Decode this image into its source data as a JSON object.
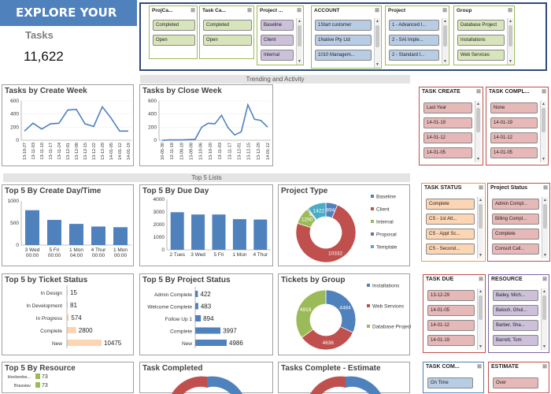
{
  "header": {
    "title": "EXPLORE YOUR DATA",
    "kpi_label": "Tasks",
    "kpi_value": "11,622"
  },
  "top_slicers": [
    {
      "title": "ProjCa...",
      "items": [
        "Completed",
        "Open"
      ],
      "chip_color": "#d8e4bc"
    },
    {
      "title": "Task Ca...",
      "items": [
        "Completed",
        "Open"
      ],
      "chip_color": "#d8e4bc"
    },
    {
      "title": "Project ...",
      "items": [
        "Baseline",
        "Client",
        "Internal"
      ],
      "chip_color": "#ccc0da"
    },
    {
      "title": "ACCOUNT",
      "items": [
        "1Start customer",
        "1Native Pty Ltd",
        "1010 Managem..."
      ],
      "chip_color": "#b8cce4"
    },
    {
      "title": "Project",
      "items": [
        "1 - Advanced I...",
        "2 - SAI Imple...",
        "2 - Standard I..."
      ],
      "chip_color": "#b8cce4"
    },
    {
      "title": "Group",
      "items": [
        "Database Project",
        "Installations",
        "Web Services"
      ],
      "chip_color": "#d8e4bc"
    }
  ],
  "sections": {
    "trend": "Trending and Activity",
    "top5": "Top 5 Lists"
  },
  "charts": {
    "create_week": {
      "title": "Tasks by Create Week",
      "ylim": [
        0,
        600
      ],
      "yticks": [
        "600",
        "400",
        "200",
        "0"
      ],
      "xlabels": [
        "13-10-27",
        "13-11-03",
        "13-11-10",
        "13-11-17",
        "13-11-24",
        "13-12-01",
        "13-12-08",
        "13-12-15",
        "13-12-22",
        "13-12-29",
        "14-01-05",
        "14-01-12",
        "14-01-19"
      ],
      "values": [
        140,
        260,
        170,
        250,
        260,
        460,
        470,
        250,
        210,
        510,
        340,
        140,
        140
      ]
    },
    "close_week": {
      "title": "Tasks by Close Week",
      "ylim": [
        0,
        600
      ],
      "yticks": [
        "600",
        "400",
        "200",
        "0"
      ],
      "xlabels": [
        "10-05-30",
        "12-11-18",
        "13-08-18",
        "13-09-08",
        "13-10-06",
        "13-10-20",
        "13-11-03",
        "13-11-17",
        "13-12-01",
        "13-12-15",
        "13-12-29",
        "14-01-12"
      ],
      "values": [
        0,
        5,
        5,
        5,
        10,
        15,
        200,
        260,
        250,
        380,
        190,
        80,
        130,
        540,
        320,
        300,
        200
      ]
    },
    "create_day": {
      "title": "Top 5 By Create Day/Time",
      "ylim": [
        0,
        1000
      ],
      "yticks": [
        "1000",
        "500",
        "0"
      ],
      "categories": [
        "3 Wed\n00:00",
        "5 Fri\n00:00",
        "1 Mon\n04:00",
        "4 Thur\n00:00",
        "1 Mon\n00:00"
      ],
      "values": [
        790,
        570,
        480,
        420,
        405
      ]
    },
    "due_day": {
      "title": "Top 5 By Due Day",
      "ylim": [
        0,
        4000
      ],
      "yticks": [
        "4000",
        "3000",
        "2000",
        "1000",
        "0"
      ],
      "categories": [
        "2 Tues",
        "3 Wed",
        "5 Fri",
        "1 Mon",
        "4 Thur"
      ],
      "values": [
        2980,
        2800,
        2800,
        2430,
        2400
      ]
    },
    "project_type": {
      "title": "Project Type",
      "legend": [
        "Baseline",
        "Client",
        "Internal",
        "Proposal",
        "Template"
      ],
      "colors": [
        "#4f81bd",
        "#c0504d",
        "#9bbb59",
        "#8064a2",
        "#4bacc6"
      ],
      "values": [
        894,
        10332,
        1290,
        92,
        1422
      ]
    },
    "ticket_status": {
      "title": "Top 5 by Ticket Status",
      "categories": [
        "In Design",
        "In Development",
        "In Progress",
        "Complete",
        "New"
      ],
      "values": [
        15,
        81,
        574,
        2800,
        10475
      ],
      "max": 10475
    },
    "project_status": {
      "title": "Top 5 By Project Status",
      "categories": [
        "Admin Complete",
        "Welcome Complete",
        "Follow Up 1",
        "Complete",
        "New"
      ],
      "values": [
        422,
        483,
        894,
        3997,
        4986
      ],
      "max": 4986
    },
    "tickets_group": {
      "title": "Tickets by Group",
      "legend": [
        "Installations",
        "Web Services",
        "Database Project"
      ],
      "colors": [
        "#4f81bd",
        "#c0504d",
        "#9bbb59"
      ],
      "values": [
        4484,
        4636,
        4919
      ]
    },
    "resource": {
      "title": "Top 5 By Resource",
      "rows": [
        {
          "name": "Hockenbe...",
          "value": "73"
        },
        {
          "name": "Brassiav",
          "value": "73"
        }
      ]
    },
    "task_completed": {
      "title": "Task Completed"
    },
    "tasks_estimate": {
      "title": "Tasks Complete  - Estimate"
    }
  },
  "right_slicers": [
    {
      "title": "TASK CREATE",
      "items": [
        "Last Year",
        "14-01-19",
        "14-01-12",
        "14-01-05"
      ],
      "chip_color": "#e6b9b8",
      "border": "#c0504d"
    },
    {
      "title": "TASK COMPL...",
      "items": [
        "None",
        "14-01-19",
        "14-01-12",
        "14-01-05"
      ],
      "chip_color": "#e6b9b8",
      "border": "#c0504d"
    },
    {
      "title": "TASK STATUS",
      "items": [
        "Complete",
        "CS - 1st Att...",
        "CS - Appt Sc...",
        "CS - Second..."
      ],
      "chip_color": "#fcd5b4",
      "border": "#f79646"
    },
    {
      "title": "Project Status",
      "items": [
        "Admin Compl...",
        "Billing Compl...",
        "Complete",
        "Consult Call..."
      ],
      "chip_color": "#e6b9b8",
      "border": "#c0504d"
    },
    {
      "title": "TASK DUE",
      "items": [
        "13-12-29",
        "14-01-05",
        "14-01-12",
        "14-01-19"
      ],
      "chip_color": "#e6b9b8",
      "border": "#c0504d"
    },
    {
      "title": "RESOURCE",
      "items": [
        "Bailey, Mich...",
        "Baloch, Ghul...",
        "Barber, Sha...",
        "Barrett, Tom"
      ],
      "chip_color": "#ccc0da",
      "border": "#8064a2"
    },
    {
      "title": "TASK COM...",
      "items": [
        "On Time"
      ],
      "chip_color": "#b8cce4",
      "border": "#4f81bd"
    },
    {
      "title": "ESTIMATE",
      "items": [
        "Over"
      ],
      "chip_color": "#e6b9b8",
      "border": "#c0504d"
    }
  ]
}
